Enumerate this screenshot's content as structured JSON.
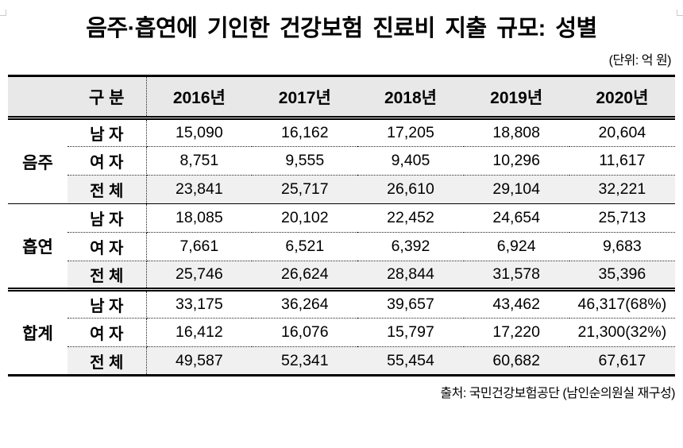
{
  "page": {
    "title": "음주·흡연에 기인한 건강보험 진료비 지출 규모: 성별",
    "unit_note": "(단위: 억 원)",
    "source": "출처: 국민건강보험공단 (남인순의원실 재구성)"
  },
  "table": {
    "header": {
      "category_label": "구 분",
      "year_columns": [
        "2016년",
        "2017년",
        "2018년",
        "2019년",
        "2020년"
      ]
    },
    "groups": [
      {
        "label": "음주",
        "rows": [
          {
            "label": "남 자",
            "values": [
              "15,090",
              "16,162",
              "17,205",
              "18,808",
              "20,604"
            ]
          },
          {
            "label": "여 자",
            "values": [
              "8,751",
              "9,555",
              "9,405",
              "10,296",
              "11,617"
            ]
          },
          {
            "label": "전 체",
            "values": [
              "23,841",
              "25,717",
              "26,610",
              "29,104",
              "32,221"
            ],
            "is_total": true
          }
        ]
      },
      {
        "label": "흡연",
        "rows": [
          {
            "label": "남 자",
            "values": [
              "18,085",
              "20,102",
              "22,452",
              "24,654",
              "25,713"
            ]
          },
          {
            "label": "여 자",
            "values": [
              "7,661",
              "6,521",
              "6,392",
              "6,924",
              "9,683"
            ]
          },
          {
            "label": "전 체",
            "values": [
              "25,746",
              "26,624",
              "28,844",
              "31,578",
              "35,396"
            ],
            "is_total": true
          }
        ]
      },
      {
        "label": "합계",
        "rows": [
          {
            "label": "남 자",
            "values": [
              "33,175",
              "36,264",
              "39,657",
              "43,462",
              "46,317(68%)"
            ]
          },
          {
            "label": "여 자",
            "values": [
              "16,412",
              "16,076",
              "15,797",
              "17,220",
              "21,300(32%)"
            ]
          },
          {
            "label": "전 체",
            "values": [
              "49,587",
              "52,341",
              "55,454",
              "60,682",
              "67,617"
            ],
            "is_total": true
          }
        ]
      }
    ]
  },
  "colors": {
    "header_bg": "#e8e8e8",
    "total_row_bg": "#f0f0f0",
    "corner_mark": "#c9c9c9",
    "text": "#000000"
  }
}
